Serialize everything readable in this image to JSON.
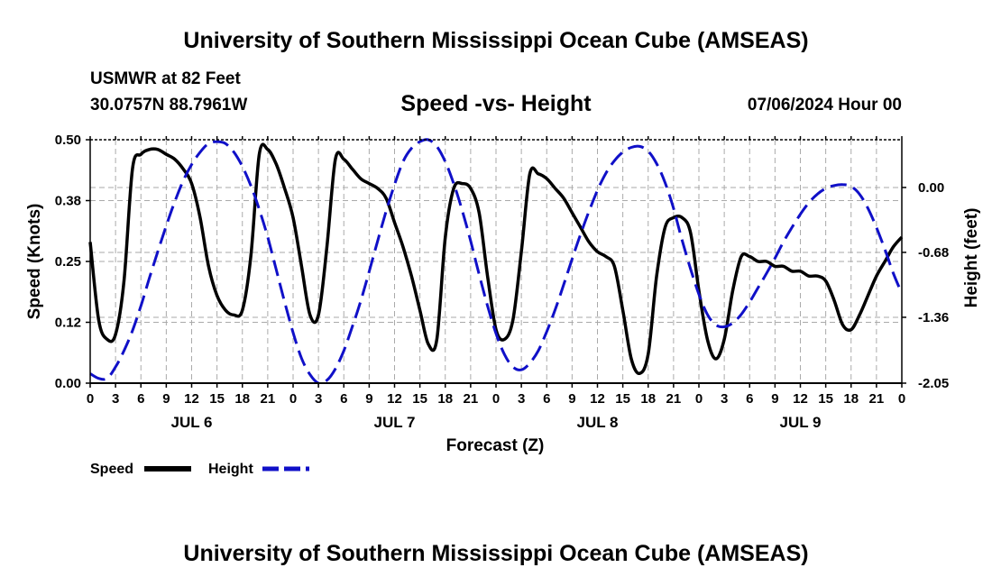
{
  "header": {
    "title": "University of Southern Mississippi Ocean Cube (AMSEAS)",
    "station": "USMWR at 82 Feet",
    "coords": "30.0757N  88.7961W",
    "subtitle": "Speed -vs- Height",
    "datetime": "07/06/2024 Hour 00"
  },
  "footer": {
    "title": "University of Southern Mississippi Ocean Cube (AMSEAS)"
  },
  "legend": {
    "speed_label": "Speed",
    "height_label": "Height"
  },
  "colors": {
    "speed": "#000000",
    "height": "#1010c8",
    "grid": "#aaaaaa"
  },
  "chart_data": {
    "type": "line",
    "title": "Speed -vs- Height",
    "xlabel": "Forecast (Z)",
    "ylabel": "Speed (Knots)",
    "y2label": "Height (feet)",
    "xlim": [
      0,
      96
    ],
    "ylim": [
      0,
      0.5
    ],
    "y2lim": [
      -2.05,
      0.5
    ],
    "grid": true,
    "legend_position": "bottom-left",
    "y_ticks": [
      "0.00",
      "0.12",
      "0.25",
      "0.38",
      "0.50"
    ],
    "y_tick_values": [
      0,
      0.125,
      0.25,
      0.375,
      0.5
    ],
    "y2_ticks": [
      "0.00",
      "-0.68",
      "-1.36",
      "-2.05"
    ],
    "y2_tick_values": [
      0,
      -0.68,
      -1.36,
      -2.05
    ],
    "x_ticks": [
      "0",
      "3",
      "6",
      "9",
      "12",
      "15",
      "18",
      "21",
      "0",
      "3",
      "6",
      "9",
      "12",
      "15",
      "18",
      "21",
      "0",
      "3",
      "6",
      "9",
      "12",
      "15",
      "18",
      "21",
      "0",
      "3",
      "6",
      "9",
      "12",
      "15",
      "18",
      "21",
      "0"
    ],
    "day_labels": [
      {
        "label": "JUL 6",
        "hour": 12
      },
      {
        "label": "JUL 7",
        "hour": 36
      },
      {
        "label": "JUL 8",
        "hour": 60
      },
      {
        "label": "JUL 9",
        "hour": 84
      }
    ],
    "series": [
      {
        "name": "Speed",
        "axis": "left",
        "style": "solid",
        "x": [
          0,
          1,
          2,
          3,
          4,
          5,
          6,
          7,
          8,
          9,
          10,
          11,
          12,
          13,
          14,
          15,
          16,
          17,
          18,
          19,
          20,
          21,
          22,
          23,
          24,
          25,
          26,
          27,
          28,
          29,
          30,
          31,
          32,
          33,
          34,
          35,
          36,
          37,
          38,
          39,
          40,
          41,
          42,
          43,
          44,
          45,
          46,
          47,
          48,
          49,
          50,
          51,
          52,
          53,
          54,
          55,
          56,
          57,
          58,
          59,
          60,
          61,
          62,
          63,
          64,
          65,
          66,
          67,
          68,
          69,
          70,
          71,
          72,
          73,
          74,
          75,
          76,
          77,
          78,
          79,
          80,
          81,
          82,
          83,
          84,
          85,
          86,
          87,
          88,
          89,
          90,
          91,
          92,
          93,
          94,
          95,
          96
        ],
        "values": [
          0.29,
          0.13,
          0.09,
          0.1,
          0.21,
          0.44,
          0.47,
          0.48,
          0.48,
          0.47,
          0.46,
          0.44,
          0.41,
          0.34,
          0.24,
          0.18,
          0.15,
          0.14,
          0.15,
          0.26,
          0.47,
          0.48,
          0.45,
          0.4,
          0.34,
          0.24,
          0.14,
          0.14,
          0.28,
          0.46,
          0.46,
          0.44,
          0.42,
          0.41,
          0.4,
          0.38,
          0.33,
          0.28,
          0.22,
          0.15,
          0.08,
          0.09,
          0.3,
          0.4,
          0.41,
          0.4,
          0.35,
          0.22,
          0.11,
          0.09,
          0.13,
          0.27,
          0.43,
          0.43,
          0.42,
          0.4,
          0.38,
          0.35,
          0.32,
          0.29,
          0.27,
          0.26,
          0.24,
          0.15,
          0.05,
          0.02,
          0.06,
          0.22,
          0.32,
          0.34,
          0.34,
          0.31,
          0.19,
          0.09,
          0.05,
          0.09,
          0.19,
          0.26,
          0.26,
          0.25,
          0.25,
          0.24,
          0.24,
          0.23,
          0.23,
          0.22,
          0.22,
          0.21,
          0.17,
          0.12,
          0.11,
          0.14,
          0.18,
          0.22,
          0.25,
          0.28,
          0.3
        ]
      },
      {
        "name": "Height",
        "axis": "right",
        "style": "dashed",
        "x": [
          0,
          1,
          2,
          3,
          4,
          5,
          6,
          7,
          8,
          9,
          10,
          11,
          12,
          13,
          14,
          15,
          16,
          17,
          18,
          19,
          20,
          21,
          22,
          23,
          24,
          25,
          26,
          27,
          28,
          29,
          30,
          31,
          32,
          33,
          34,
          35,
          36,
          37,
          38,
          39,
          40,
          41,
          42,
          43,
          44,
          45,
          46,
          47,
          48,
          49,
          50,
          51,
          52,
          53,
          54,
          55,
          56,
          57,
          58,
          59,
          60,
          61,
          62,
          63,
          64,
          65,
          66,
          67,
          68,
          69,
          70,
          71,
          72,
          73,
          74,
          75,
          76,
          77,
          78,
          79,
          80,
          81,
          82,
          83,
          84,
          85,
          86,
          87,
          88,
          89,
          90,
          91,
          92,
          93,
          94,
          95,
          96
        ],
        "values": [
          -1.95,
          -2.0,
          -2.0,
          -1.88,
          -1.71,
          -1.5,
          -1.24,
          -0.95,
          -0.67,
          -0.4,
          -0.15,
          0.07,
          0.24,
          0.37,
          0.46,
          0.48,
          0.46,
          0.37,
          0.22,
          0.02,
          -0.23,
          -0.52,
          -0.86,
          -1.2,
          -1.52,
          -1.79,
          -1.96,
          -2.05,
          -2.02,
          -1.9,
          -1.71,
          -1.46,
          -1.19,
          -0.88,
          -0.56,
          -0.25,
          0.03,
          0.27,
          0.41,
          0.48,
          0.5,
          0.43,
          0.27,
          0.04,
          -0.24,
          -0.56,
          -0.91,
          -1.24,
          -1.53,
          -1.75,
          -1.88,
          -1.91,
          -1.84,
          -1.71,
          -1.51,
          -1.28,
          -1.02,
          -0.75,
          -0.49,
          -0.25,
          -0.03,
          0.15,
          0.28,
          0.37,
          0.42,
          0.43,
          0.38,
          0.25,
          0.05,
          -0.22,
          -0.55,
          -0.85,
          -1.12,
          -1.33,
          -1.44,
          -1.46,
          -1.42,
          -1.33,
          -1.2,
          -1.05,
          -0.9,
          -0.74,
          -0.57,
          -0.42,
          -0.28,
          -0.16,
          -0.07,
          -0.01,
          0.02,
          0.03,
          0.01,
          -0.07,
          -0.22,
          -0.42,
          -0.65,
          -0.9,
          -1.11
        ]
      }
    ]
  }
}
